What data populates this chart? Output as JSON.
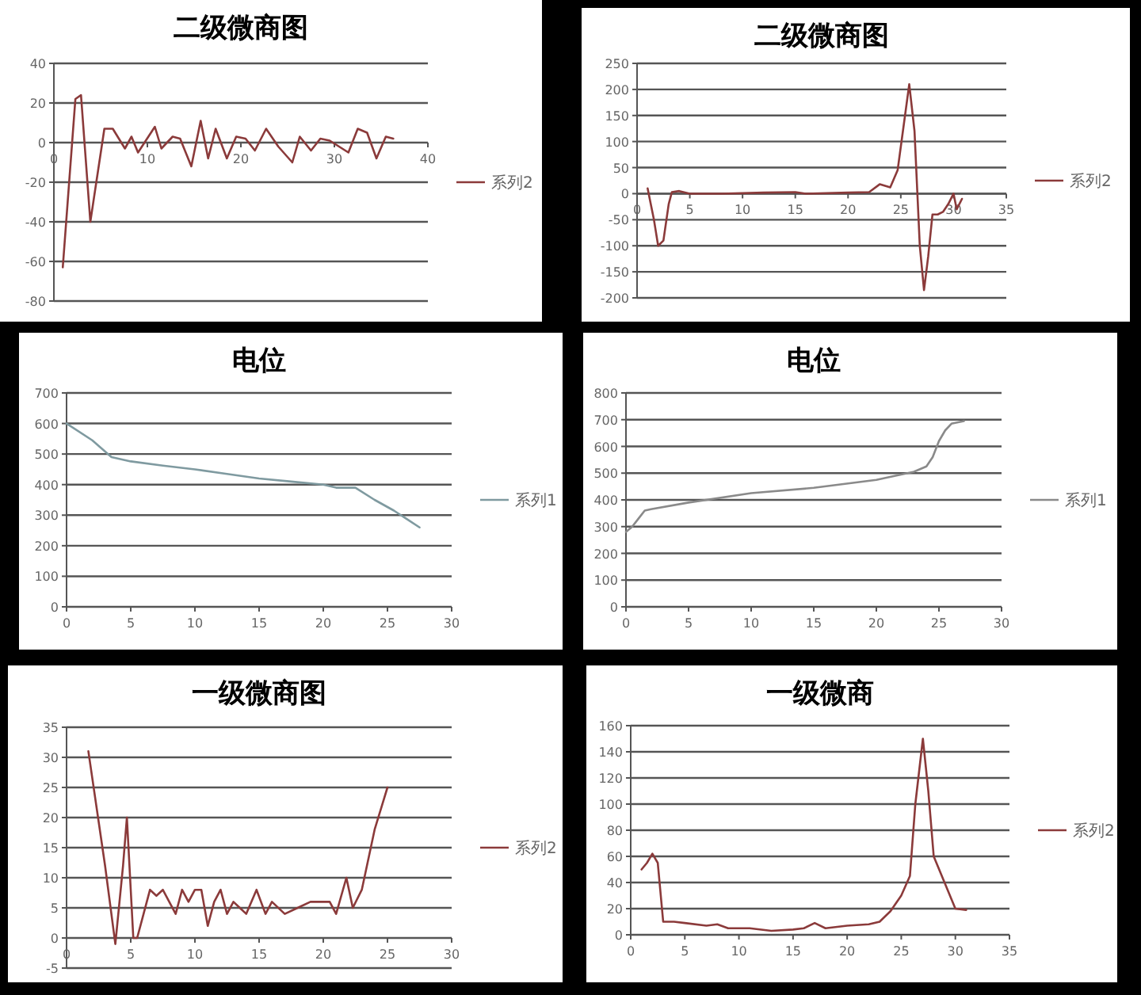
{
  "chart_data": [
    {
      "type": "line",
      "title": "二级微商图",
      "x": [
        0.95,
        2.3,
        2.9,
        3.9,
        5.4,
        6.3,
        7.6,
        8.3,
        9,
        10.8,
        11.5,
        12.7,
        13.5,
        14.7,
        15.7,
        16.5,
        17.3,
        18.5,
        19.5,
        20.5,
        21.5,
        22.7,
        24,
        25.5,
        26.3,
        27.5,
        28.5,
        29.5,
        30.5,
        31.5,
        32.5,
        33.5,
        34.5,
        35.5,
        36.3
      ],
      "series": [
        {
          "name": "系列2",
          "color": "#8b3a3a",
          "values": [
            -63,
            22,
            24,
            -40,
            7,
            7,
            -3,
            3,
            -5,
            8,
            -3,
            3,
            2,
            -12,
            11,
            -8,
            7,
            -8,
            3,
            2,
            -4,
            7,
            -2,
            -10,
            3,
            -4,
            2,
            1,
            -2,
            -5,
            7,
            5,
            -8,
            3,
            2
          ]
        }
      ],
      "xlim": [
        0,
        40
      ],
      "xticks": [
        0,
        10,
        20,
        30,
        40
      ],
      "ylim": [
        -80,
        40
      ],
      "yticks": [
        -80,
        -60,
        -40,
        -20,
        0,
        20,
        40
      ],
      "grid": "y",
      "legend": "right"
    },
    {
      "type": "line",
      "title": "二级微商图",
      "x": [
        1,
        1.6,
        2,
        2.5,
        3,
        3.3,
        4,
        5,
        8,
        12,
        15,
        16,
        20,
        22,
        23,
        24,
        24.7,
        25.2,
        25.8,
        26.3,
        26.8,
        27.2,
        27.6,
        28,
        28.5,
        29,
        29.5,
        30,
        30.3,
        30.8
      ],
      "series": [
        {
          "name": "系列2",
          "color": "#8b3a3a",
          "values": [
            10,
            -50,
            -100,
            -90,
            -20,
            3,
            5,
            0,
            0,
            2,
            3,
            0,
            2,
            3,
            18,
            12,
            45,
            120,
            210,
            120,
            -100,
            -185,
            -120,
            -40,
            -40,
            -35,
            -20,
            0,
            -30,
            -10
          ]
        }
      ],
      "xlim": [
        0,
        35
      ],
      "xticks": [
        0,
        5,
        10,
        15,
        20,
        25,
        30,
        35
      ],
      "ylim": [
        -200,
        250
      ],
      "yticks": [
        -200,
        -150,
        -100,
        -50,
        0,
        50,
        100,
        150,
        200,
        250
      ],
      "grid": "y",
      "legend": "right"
    },
    {
      "type": "line",
      "title": "电位",
      "x": [
        0,
        2,
        3.5,
        5,
        7.5,
        10,
        12.5,
        15,
        17.5,
        20,
        21,
        22.5,
        24,
        25.5,
        27.5
      ],
      "series": [
        {
          "name": "系列1",
          "color": "#7f9aa0",
          "values": [
            600,
            545,
            490,
            476,
            462,
            450,
            435,
            420,
            410,
            400,
            390,
            390,
            350,
            315,
            260
          ]
        }
      ],
      "xlim": [
        0,
        30
      ],
      "xticks": [
        0,
        5,
        10,
        15,
        20,
        25,
        30
      ],
      "ylim": [
        0,
        700
      ],
      "yticks": [
        0,
        100,
        200,
        300,
        400,
        500,
        600,
        700
      ],
      "grid": "y",
      "legend": "right"
    },
    {
      "type": "line",
      "title": "电位",
      "x": [
        0,
        0.5,
        1,
        1.5,
        2,
        5,
        10,
        15,
        20,
        23,
        24,
        24.5,
        25,
        25.5,
        26,
        27
      ],
      "series": [
        {
          "name": "系列1",
          "color": "#8a8a8a",
          "values": [
            280,
            300,
            330,
            360,
            365,
            390,
            425,
            445,
            475,
            505,
            525,
            560,
            620,
            660,
            685,
            695
          ]
        }
      ],
      "xlim": [
        0,
        30
      ],
      "xticks": [
        0,
        5,
        10,
        15,
        20,
        25,
        30
      ],
      "ylim": [
        0,
        800
      ],
      "yticks": [
        0,
        100,
        200,
        300,
        400,
        500,
        600,
        700,
        800
      ],
      "grid": "y",
      "legend": "right"
    },
    {
      "type": "line",
      "title": "一级微商图",
      "x": [
        1.7,
        3,
        3.8,
        4.4,
        4.7,
        5.2,
        5.5,
        6,
        6.5,
        7,
        7.5,
        8,
        8.5,
        9,
        9.5,
        10,
        10.5,
        11,
        11.5,
        12,
        12.5,
        13,
        13.5,
        14,
        14.8,
        15.5,
        16,
        17,
        18,
        19,
        20.5,
        21,
        21.8,
        22.3,
        23,
        24,
        25
      ],
      "series": [
        {
          "name": "系列2",
          "color": "#8b3a3a",
          "values": [
            31,
            12,
            -1,
            12,
            20,
            0,
            0,
            4,
            8,
            7,
            8,
            6,
            4,
            8,
            6,
            8,
            8,
            2,
            6,
            8,
            4,
            6,
            5,
            4,
            8,
            4,
            6,
            4,
            5,
            6,
            6,
            4,
            10,
            5,
            8,
            18,
            25
          ]
        }
      ],
      "xlim": [
        0,
        30
      ],
      "xticks": [
        0,
        5,
        10,
        15,
        20,
        25,
        30
      ],
      "ylim": [
        -5,
        35
      ],
      "yticks": [
        -5,
        0,
        5,
        10,
        15,
        20,
        25,
        30,
        35
      ],
      "grid": "y",
      "legend": "right"
    },
    {
      "type": "line",
      "title": "一级微商",
      "x": [
        1,
        1.5,
        2,
        2.5,
        3,
        4,
        5,
        7,
        8,
        9,
        11,
        13,
        15,
        16,
        17,
        18,
        20,
        22,
        23,
        24,
        25,
        25.8,
        26.3,
        27,
        27.5,
        28,
        29,
        30,
        31
      ],
      "series": [
        {
          "name": "系列2",
          "color": "#8b3a3a",
          "values": [
            50,
            55,
            62,
            55,
            10,
            10,
            9,
            7,
            8,
            5,
            5,
            3,
            4,
            5,
            9,
            5,
            7,
            8,
            10,
            18,
            30,
            45,
            100,
            150,
            110,
            60,
            40,
            20,
            19
          ]
        }
      ],
      "xlim": [
        0,
        35
      ],
      "xticks": [
        0,
        5,
        10,
        15,
        20,
        25,
        30,
        35
      ],
      "ylim": [
        0,
        160
      ],
      "yticks": [
        0,
        20,
        40,
        60,
        80,
        100,
        120,
        140,
        160
      ],
      "grid": "y",
      "legend": "right"
    }
  ]
}
